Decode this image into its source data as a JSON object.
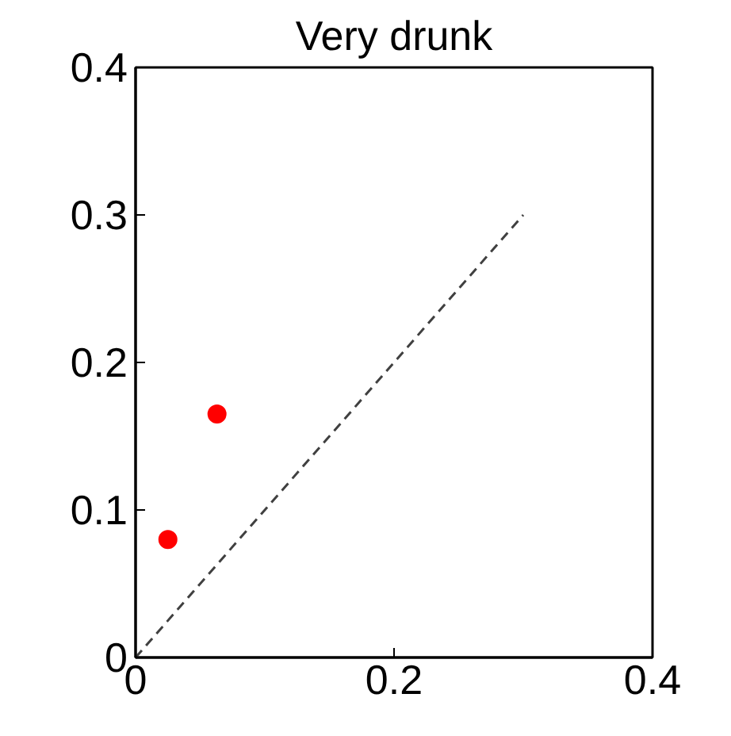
{
  "chart_data": {
    "type": "scatter",
    "title": "Very drunk",
    "series": [
      {
        "color": "#ff0000",
        "x": [
          0.025,
          0.063
        ],
        "values": [
          0.08,
          0.165
        ],
        "marker": "circle"
      },
      {
        "type": "line",
        "color": "#404040",
        "x": [
          0,
          0.3
        ],
        "values": [
          0,
          0.3
        ],
        "line_style": "dashed",
        "marker": "none"
      }
    ],
    "xlim": [
      0,
      0.4
    ],
    "ylim": [
      0,
      0.4
    ],
    "xticks": [
      0,
      0.2,
      0.4
    ],
    "yticks": [
      0,
      0.1,
      0.2,
      0.3,
      0.4
    ],
    "grid": false
  }
}
